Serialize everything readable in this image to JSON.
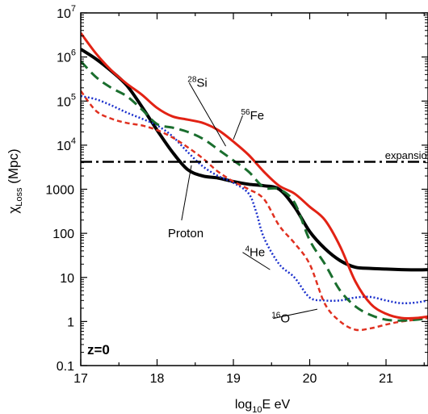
{
  "chart_data": {
    "type": "line",
    "title": "",
    "xlabel": {
      "main": "log",
      "sub": "10",
      "tail": "E eV"
    },
    "ylabel": {
      "main": "χ",
      "sub": "Loss",
      "tail": " (Mpc)"
    },
    "xlim": [
      17,
      21.55
    ],
    "ylim": [
      0.1,
      10000000
    ],
    "yscale": "log",
    "x_ticks": [
      "17",
      "18",
      "19",
      "20",
      "21"
    ],
    "y_ticks": [
      {
        "value": 10000000,
        "base": "10",
        "exp": "7"
      },
      {
        "value": 1000000,
        "base": "10",
        "exp": "6"
      },
      {
        "value": 100000,
        "base": "10",
        "exp": "5"
      },
      {
        "value": 10000,
        "base": "10",
        "exp": "4"
      },
      {
        "value": 1000,
        "base": "1000",
        "exp": ""
      },
      {
        "value": 100,
        "base": "100",
        "exp": ""
      },
      {
        "value": 10,
        "base": "10",
        "exp": ""
      },
      {
        "value": 1,
        "base": "1",
        "exp": ""
      },
      {
        "value": 0.1,
        "base": "0.1",
        "exp": ""
      }
    ],
    "grid": false,
    "annotation": "z=0",
    "series": [
      {
        "name": "Proton",
        "color": "#000000",
        "dash": "",
        "width": 4,
        "x": [
          17.0,
          17.2,
          17.4,
          17.6,
          17.8,
          18.0,
          18.2,
          18.4,
          18.6,
          18.8,
          19.0,
          19.2,
          19.4,
          19.6,
          19.8,
          20.0,
          20.2,
          20.4,
          20.6,
          20.8,
          21.0,
          21.2,
          21.4,
          21.55
        ],
        "y": [
          1500000,
          900000,
          480000,
          230000,
          75000,
          22000,
          7000,
          2800,
          2000,
          1800,
          1500,
          1300,
          1200,
          1000,
          400,
          110,
          45,
          24,
          17,
          16,
          15.5,
          15,
          14.8,
          15
        ]
      },
      {
        "name": "⁴He",
        "color": "#1a2fcc",
        "dash": "2,2.5",
        "width": 2.5,
        "x": [
          17.0,
          17.2,
          17.4,
          17.6,
          17.8,
          18.0,
          18.2,
          18.4,
          18.6,
          18.8,
          19.0,
          19.2,
          19.3,
          19.4,
          19.6,
          19.8,
          20.0,
          20.2,
          20.4,
          20.6,
          20.8,
          21.0,
          21.2,
          21.4,
          21.55
        ],
        "y": [
          130000,
          110000,
          80000,
          55000,
          40000,
          28000,
          16000,
          7000,
          3300,
          2000,
          1400,
          800,
          300,
          80,
          20,
          10,
          3.5,
          3.0,
          3.0,
          3.5,
          3.6,
          3.0,
          2.6,
          2.7,
          3.0
        ]
      },
      {
        "name": "¹⁶O",
        "color": "#e03020",
        "dash": "6,4",
        "width": 2.5,
        "x": [
          17.0,
          17.2,
          17.4,
          17.6,
          17.8,
          18.0,
          18.2,
          18.4,
          18.6,
          18.8,
          19.0,
          19.2,
          19.4,
          19.6,
          19.8,
          20.0,
          20.2,
          20.4,
          20.6,
          20.8,
          21.0,
          21.2,
          21.4,
          21.55
        ],
        "y": [
          170000,
          60000,
          40000,
          32000,
          28000,
          22000,
          15000,
          9000,
          5000,
          2500,
          1500,
          1000,
          600,
          150,
          60,
          20,
          2.5,
          1.0,
          0.65,
          0.7,
          0.85,
          1.0,
          1.1,
          1.2
        ]
      },
      {
        "name": "²⁸Si",
        "color": "#1a6e2e",
        "dash": "12,7",
        "width": 3,
        "x": [
          17.0,
          17.2,
          17.4,
          17.6,
          17.8,
          18.0,
          18.2,
          18.4,
          18.6,
          18.8,
          19.0,
          19.2,
          19.4,
          19.6,
          19.8,
          20.0,
          20.2,
          20.4,
          20.6,
          20.8,
          21.0,
          21.2,
          21.4,
          21.55
        ],
        "y": [
          800000,
          350000,
          200000,
          130000,
          65000,
          30000,
          25000,
          20000,
          14000,
          8000,
          4500,
          2500,
          1100,
          1000,
          500,
          70,
          20,
          5,
          2.2,
          1.4,
          1.1,
          1.05,
          1.1,
          1.2
        ]
      },
      {
        "name": "⁵⁶Fe",
        "color": "#e22214",
        "dash": "",
        "width": 3,
        "x": [
          17.0,
          17.2,
          17.4,
          17.6,
          17.8,
          18.0,
          18.2,
          18.4,
          18.6,
          18.8,
          19.0,
          19.2,
          19.4,
          19.6,
          19.8,
          20.0,
          20.2,
          20.4,
          20.6,
          20.8,
          21.0,
          21.2,
          21.4,
          21.55
        ],
        "y": [
          3500000,
          1200000,
          500000,
          250000,
          140000,
          70000,
          45000,
          38000,
          32000,
          22000,
          12000,
          6000,
          2500,
          1200,
          800,
          400,
          200,
          50,
          8,
          2.5,
          1.5,
          1.2,
          1.2,
          1.3
        ]
      },
      {
        "name": "expansion",
        "color": "#000000",
        "dash": "14,5,3,5",
        "width": 2.5,
        "x": [
          17.0,
          21.55
        ],
        "y": [
          4200,
          4200
        ]
      }
    ],
    "labels": [
      {
        "text": "Proton",
        "x": 18.3,
        "y": 160,
        "lead_to": [
          18.45,
          3500
        ]
      },
      {
        "text": "⁴He",
        "x": 19.1,
        "y": 30,
        "lead_to": [
          19.48,
          15
        ]
      },
      {
        "text": "¹⁶O",
        "x": 19.5,
        "y": 0.95,
        "lead_to": [
          20.1,
          1.9
        ]
      },
      {
        "text": "²⁸Si",
        "x": 18.4,
        "y": 210000,
        "lead_to": [
          18.9,
          9500
        ]
      },
      {
        "text": "⁵⁶Fe",
        "x": 19.1,
        "y": 38000,
        "lead_to": [
          19.0,
          13500
        ]
      },
      {
        "text": "expansion",
        "x": 21.3,
        "y": 4900,
        "lead_to": null
      }
    ]
  }
}
